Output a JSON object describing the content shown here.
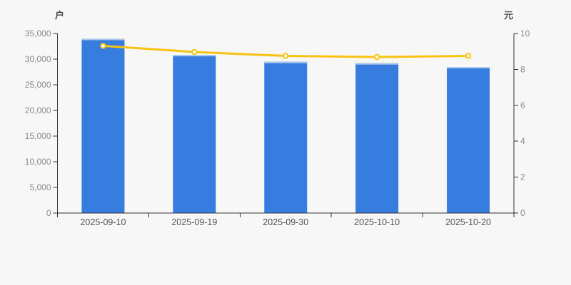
{
  "page": {
    "background": "#F7F7F7"
  },
  "chart_data": {
    "type": "bar",
    "subtype": "bar-with-line-overlay",
    "categories": [
      "2025-09-10",
      "2025-09-19",
      "2025-09-30",
      "2025-10-10",
      "2025-10-20"
    ],
    "series": [
      {
        "id": "bar-series",
        "render": "bar",
        "axis": "left",
        "unit": "户",
        "values": [
          33970,
          30830,
          29490,
          29210,
          28470
        ]
      },
      {
        "id": "line-series",
        "render": "line",
        "axis": "right",
        "unit": "元",
        "values": [
          9.31,
          8.97,
          8.75,
          8.69,
          8.75
        ]
      }
    ],
    "left_axis": {
      "label": "户",
      "min": 0,
      "max": 35000,
      "step": 5000,
      "tick_labels": [
        "0",
        "5,000",
        "10,000",
        "15,000",
        "20,000",
        "25,000",
        "30,000",
        "35,000"
      ]
    },
    "right_axis": {
      "label": "元",
      "min": 0,
      "max": 10,
      "step": 2,
      "tick_labels": [
        "0",
        "2",
        "4",
        "6",
        "8",
        "10"
      ]
    },
    "title": "",
    "legend": false,
    "grid": false
  },
  "colors": {
    "background": "#F7F7F7",
    "bar_fill": "#377DE0",
    "bar_top_edge": "#AAC8EE",
    "line_stroke": "#FAC312",
    "marker_fill": "#FFFFFF",
    "marker_stroke": "#FAC312",
    "axis_line": "#333333",
    "y_tick_label": "#8C8C8C",
    "x_tick_label": "#555555",
    "axis_name": "#4D4D4D"
  }
}
